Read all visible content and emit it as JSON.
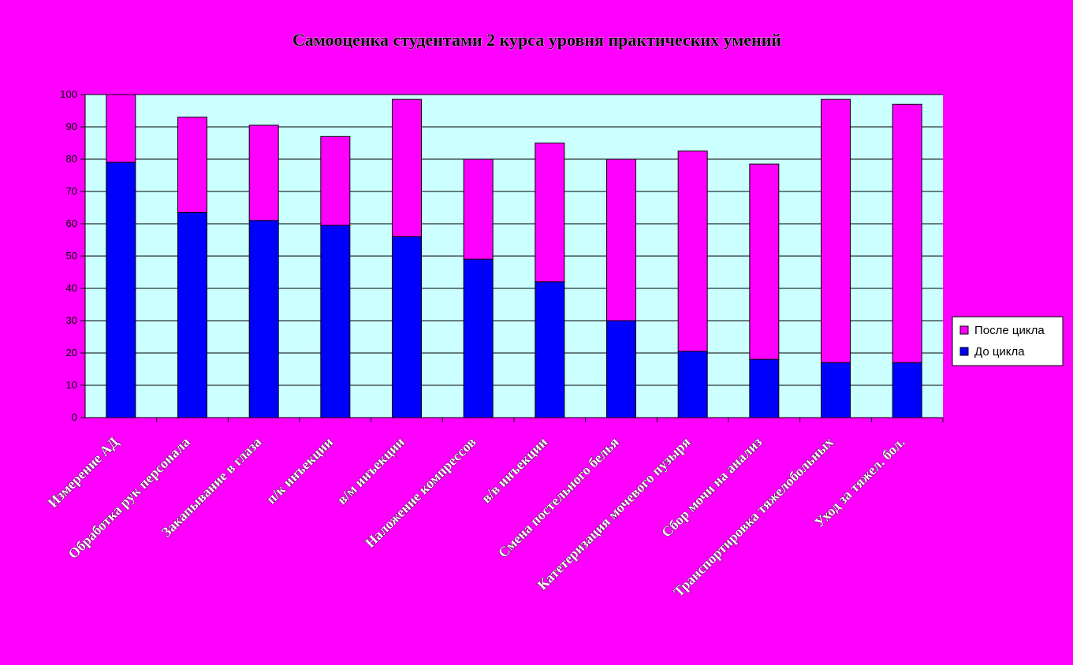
{
  "colors": {
    "page_background": "#ff00ff",
    "plot_background": "#ccffff",
    "before_color": "#0000ff",
    "after_color": "#ff00ff",
    "gridline": "#000000"
  },
  "chart_data": {
    "type": "bar",
    "stacked": true,
    "title": "Самооценка студентами 2 курса уровня практических умений",
    "xlabel": "",
    "ylabel": "",
    "ylim": [
      0,
      100
    ],
    "yticks": [
      0,
      10,
      20,
      30,
      40,
      50,
      60,
      70,
      80,
      90,
      100
    ],
    "grid": true,
    "legend_position": "right",
    "categories": [
      "Измерение АД",
      "Обработка рук персонала",
      "Закапывание в глаза",
      "п/к инъекции",
      "в/м инъекции",
      "Наложение компрессов",
      "в/в инъекции",
      "Смена постельного белья",
      "Катетеризация мочевого пузыря",
      "Сбор мочи на анализ",
      "Транспортировка тяжелобольных",
      "Уход за тяжел. бол."
    ],
    "series": [
      {
        "name": "До цикла",
        "color": "#0000ff",
        "values": [
          79,
          63.5,
          61,
          59.5,
          56,
          49,
          42,
          30,
          20.5,
          18,
          17,
          17
        ]
      },
      {
        "name": "После цикла",
        "color": "#ff00ff",
        "values": [
          21,
          29.5,
          29.5,
          27.5,
          42.5,
          31,
          43,
          50,
          62,
          60.5,
          81.5,
          80
        ]
      }
    ],
    "totals": [
      100,
      93,
      90.5,
      87,
      98.5,
      80,
      85,
      80,
      82.5,
      78.5,
      98.5,
      97
    ]
  },
  "legend": {
    "items": [
      {
        "label": "После цикла",
        "color": "#ff00ff"
      },
      {
        "label": "До цикла",
        "color": "#0000ff"
      }
    ]
  }
}
